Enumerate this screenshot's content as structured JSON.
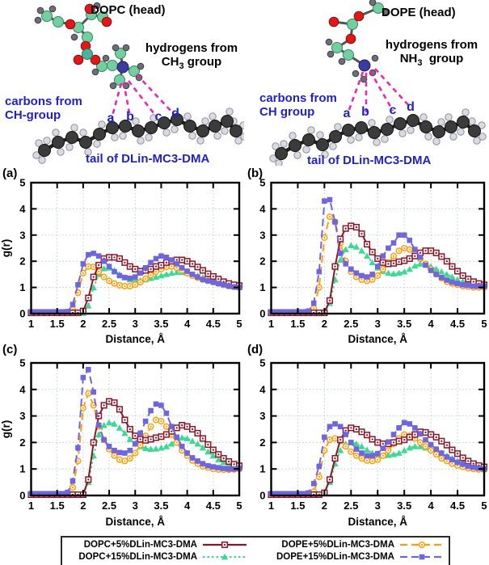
{
  "molecules": {
    "left": {
      "title": "DOPC (head)",
      "hydrogens_line1": "hydrogens from",
      "hydrogens_base": "CH",
      "hydrogens_sub": "3",
      "hydrogens_suffix": " group",
      "carbons_line1": "carbons from",
      "carbons_line2": "CH-group",
      "site_labels": [
        "a",
        "b",
        "c",
        "d"
      ],
      "tail_label": "tail of DLin-MC3-DMA"
    },
    "right": {
      "title": "DOPE (head)",
      "hydrogens_line1": "hydrogens from",
      "hydrogens_base": "NH",
      "hydrogens_sub": "3",
      "hydrogens_suffix": "  group",
      "carbons_line1": "carbons from",
      "carbons_line2": "CH group",
      "site_labels": [
        "a",
        "b",
        "c",
        "d"
      ],
      "tail_label": "tail of DLin-MC3-DMA"
    }
  },
  "style": {
    "grid_color": "#bccfc6",
    "axis_color": "#000000",
    "text_blue": "#2121cc",
    "magenta_dash": "#e62ab0"
  },
  "series_styles": {
    "DOPC+5%DLin-MC3-DMA": {
      "color": "#8b1527",
      "marker": "open-square-dot",
      "dash": "solid"
    },
    "DOPC+15%DLin-MC3-DMA": {
      "color": "#3fd795",
      "marker": "filled-triangle",
      "dash": "dotted"
    },
    "DOPE+5%DLin-MC3-DMA": {
      "color": "#ff9e0d",
      "marker": "open-circle-dot",
      "dash": "dashed"
    },
    "DOPE+15%DLin-MC3-DMA": {
      "color": "#6f66dd",
      "marker": "filled-square",
      "dash": "dashed"
    }
  },
  "legend": {
    "items": [
      {
        "label": "DOPC+5%DLin-MC3-DMA",
        "series": "DOPC+5%DLin-MC3-DMA"
      },
      {
        "label": "DOPE+5%DLin-MC3-DMA",
        "series": "DOPE+5%DLin-MC3-DMA"
      },
      {
        "label": "DOPC+15%DLin-MC3-DMA",
        "series": "DOPC+15%DLin-MC3-DMA"
      },
      {
        "label": "DOPE+15%DLin-MC3-DMA",
        "series": "DOPE+15%DLin-MC3-DMA"
      }
    ]
  },
  "chart_data": [
    {
      "id": "a",
      "type": "line",
      "panel_label": "(a)",
      "xlabel": "Distance, Å",
      "ylabel": "g(r)",
      "xlim": [
        1,
        5
      ],
      "ylim": [
        0,
        5
      ],
      "xticks": [
        1,
        1.5,
        2,
        2.5,
        3,
        3.5,
        4,
        4.5,
        5
      ],
      "yticks": [
        0,
        1,
        2,
        3,
        4,
        5
      ],
      "x_start": 1.0,
      "x_step": 0.1,
      "series": [
        {
          "name": "DOPC+15%DLin-MC3-DMA",
          "values": [
            0.02,
            0.02,
            0.02,
            0.02,
            0.02,
            0.02,
            0.02,
            0.02,
            0.02,
            0.02,
            0.02,
            0.3,
            1.0,
            1.5,
            1.72,
            1.75,
            1.65,
            1.5,
            1.38,
            1.3,
            1.27,
            1.27,
            1.3,
            1.35,
            1.4,
            1.45,
            1.5,
            1.55,
            1.58,
            1.58,
            1.55,
            1.5,
            1.45,
            1.38,
            1.3,
            1.25,
            1.18,
            1.12,
            1.08,
            1.03,
            1.0
          ]
        },
        {
          "name": "DOPE+5%DLin-MC3-DMA",
          "values": [
            0.04,
            0.04,
            0.04,
            0.04,
            0.04,
            0.04,
            0.04,
            0.04,
            0.15,
            0.8,
            1.55,
            1.8,
            1.78,
            1.6,
            1.4,
            1.25,
            1.15,
            1.08,
            1.05,
            1.05,
            1.1,
            1.2,
            1.33,
            1.47,
            1.6,
            1.7,
            1.78,
            1.8,
            1.75,
            1.65,
            1.55,
            1.45,
            1.37,
            1.3,
            1.25,
            1.2,
            1.15,
            1.1,
            1.05,
            1.02,
            1.0
          ]
        },
        {
          "name": "DOPC+5%DLin-MC3-DMA",
          "values": [
            0.03,
            0.03,
            0.03,
            0.03,
            0.03,
            0.03,
            0.03,
            0.03,
            0.03,
            0.03,
            0.1,
            0.6,
            1.4,
            1.85,
            2.1,
            2.15,
            2.15,
            2.1,
            1.95,
            1.8,
            1.7,
            1.62,
            1.65,
            1.7,
            1.8,
            1.85,
            1.95,
            2.0,
            2.05,
            2.05,
            2.0,
            1.9,
            1.78,
            1.65,
            1.52,
            1.42,
            1.32,
            1.22,
            1.15,
            1.1,
            1.07
          ]
        },
        {
          "name": "DOPE+15%DLin-MC3-DMA",
          "values": [
            0.07,
            0.07,
            0.07,
            0.07,
            0.07,
            0.07,
            0.07,
            0.08,
            0.35,
            1.1,
            1.9,
            2.25,
            2.3,
            2.2,
            2.0,
            1.8,
            1.6,
            1.45,
            1.38,
            1.35,
            1.4,
            1.55,
            1.75,
            1.95,
            2.1,
            2.2,
            2.15,
            2.05,
            1.9,
            1.75,
            1.62,
            1.5,
            1.4,
            1.3,
            1.25,
            1.2,
            1.15,
            1.1,
            1.05,
            1.02,
            1.0
          ]
        }
      ]
    },
    {
      "id": "b",
      "type": "line",
      "panel_label": "(b)",
      "xlabel": "Distance, Å",
      "ylabel": "",
      "xlim": [
        1,
        5
      ],
      "ylim": [
        0,
        5
      ],
      "xticks": [
        1,
        1.5,
        2,
        2.5,
        3,
        3.5,
        4,
        4.5,
        5
      ],
      "yticks": [
        0,
        1,
        2,
        3,
        4,
        5
      ],
      "x_start": 1.0,
      "x_step": 0.1,
      "series": [
        {
          "name": "DOPC+15%DLin-MC3-DMA",
          "values": [
            0.02,
            0.02,
            0.02,
            0.02,
            0.02,
            0.02,
            0.02,
            0.02,
            0.02,
            0.02,
            0.02,
            0.4,
            1.3,
            2.05,
            2.45,
            2.6,
            2.55,
            2.4,
            2.2,
            1.95,
            1.75,
            1.62,
            1.55,
            1.52,
            1.55,
            1.6,
            1.7,
            1.82,
            1.9,
            1.88,
            1.8,
            1.7,
            1.6,
            1.5,
            1.4,
            1.3,
            1.22,
            1.15,
            1.1,
            1.06,
            1.03
          ]
        },
        {
          "name": "DOPE+5%DLin-MC3-DMA",
          "values": [
            0.04,
            0.04,
            0.04,
            0.04,
            0.04,
            0.04,
            0.04,
            0.04,
            0.2,
            1.0,
            2.9,
            3.7,
            3.5,
            2.7,
            2.0,
            1.6,
            1.4,
            1.3,
            1.25,
            1.3,
            1.45,
            1.7,
            1.95,
            2.2,
            2.4,
            2.5,
            2.45,
            2.3,
            2.1,
            1.9,
            1.7,
            1.5,
            1.35,
            1.22,
            1.15,
            1.1,
            1.05,
            1.03,
            1.0,
            1.0,
            1.0
          ]
        },
        {
          "name": "DOPC+5%DLin-MC3-DMA",
          "values": [
            0.03,
            0.03,
            0.03,
            0.03,
            0.03,
            0.03,
            0.03,
            0.03,
            0.03,
            0.03,
            0.03,
            0.5,
            1.8,
            2.85,
            3.25,
            3.35,
            3.3,
            3.05,
            2.65,
            2.35,
            2.1,
            1.95,
            1.9,
            1.92,
            1.98,
            2.02,
            2.1,
            2.2,
            2.32,
            2.4,
            2.4,
            2.32,
            2.18,
            2.0,
            1.8,
            1.62,
            1.45,
            1.32,
            1.22,
            1.15,
            1.1
          ]
        },
        {
          "name": "DOPE+15%DLin-MC3-DMA",
          "values": [
            0.07,
            0.07,
            0.07,
            0.07,
            0.07,
            0.07,
            0.07,
            0.1,
            0.4,
            1.6,
            4.3,
            4.35,
            3.5,
            2.3,
            1.9,
            1.7,
            1.55,
            1.45,
            1.4,
            1.5,
            1.8,
            2.2,
            2.5,
            2.7,
            3.0,
            3.0,
            2.8,
            2.45,
            2.15,
            1.85,
            1.65,
            1.5,
            1.38,
            1.28,
            1.2,
            1.15,
            1.1,
            1.08,
            1.05,
            1.05,
            1.05
          ]
        }
      ]
    },
    {
      "id": "c",
      "type": "line",
      "panel_label": "(c)",
      "xlabel": "Distance, Å",
      "ylabel": "g(r)",
      "xlim": [
        1,
        5
      ],
      "ylim": [
        0,
        5
      ],
      "xticks": [
        1,
        1.5,
        2,
        2.5,
        3,
        3.5,
        4,
        4.5,
        5
      ],
      "yticks": [
        0,
        1,
        2,
        3,
        4,
        5
      ],
      "x_start": 1.0,
      "x_step": 0.1,
      "series": [
        {
          "name": "DOPC+15%DLin-MC3-DMA",
          "values": [
            0.02,
            0.02,
            0.02,
            0.02,
            0.02,
            0.02,
            0.02,
            0.02,
            0.02,
            0.02,
            0.02,
            0.5,
            1.5,
            2.3,
            2.65,
            2.75,
            2.7,
            2.55,
            2.35,
            2.12,
            1.95,
            1.85,
            1.78,
            1.75,
            1.76,
            1.8,
            1.85,
            1.95,
            2.1,
            2.18,
            2.15,
            2.05,
            1.95,
            1.8,
            1.65,
            1.5,
            1.35,
            1.25,
            1.15,
            1.08,
            1.05
          ]
        },
        {
          "name": "DOPE+5%DLin-MC3-DMA",
          "values": [
            0.04,
            0.04,
            0.04,
            0.04,
            0.04,
            0.04,
            0.04,
            0.04,
            0.3,
            1.3,
            3.3,
            3.85,
            3.4,
            2.6,
            2.1,
            1.75,
            1.5,
            1.35,
            1.3,
            1.4,
            1.6,
            1.9,
            2.25,
            2.6,
            2.85,
            2.8,
            2.6,
            2.3,
            2.0,
            1.7,
            1.5,
            1.32,
            1.2,
            1.1,
            1.05,
            1.0,
            0.98,
            0.97,
            0.97,
            0.98,
            1.0
          ]
        },
        {
          "name": "DOPC+5%DLin-MC3-DMA",
          "values": [
            0.03,
            0.03,
            0.03,
            0.03,
            0.03,
            0.03,
            0.03,
            0.03,
            0.03,
            0.03,
            0.03,
            0.6,
            2.0,
            3.0,
            3.4,
            3.55,
            3.5,
            3.25,
            2.85,
            2.5,
            2.25,
            2.12,
            2.08,
            2.12,
            2.18,
            2.22,
            2.3,
            2.42,
            2.55,
            2.65,
            2.6,
            2.5,
            2.35,
            2.15,
            1.92,
            1.72,
            1.55,
            1.4,
            1.28,
            1.18,
            1.12
          ]
        },
        {
          "name": "DOPE+15%DLin-MC3-DMA",
          "values": [
            0.07,
            0.07,
            0.07,
            0.07,
            0.07,
            0.07,
            0.07,
            0.12,
            0.55,
            1.8,
            4.45,
            4.75,
            3.9,
            2.65,
            2.1,
            1.85,
            1.7,
            1.62,
            1.6,
            1.7,
            1.95,
            2.35,
            2.8,
            3.2,
            3.45,
            3.4,
            3.1,
            2.6,
            2.2,
            1.85,
            1.6,
            1.42,
            1.3,
            1.2,
            1.12,
            1.08,
            1.05,
            1.02,
            1.0,
            1.0,
            1.02
          ]
        }
      ]
    },
    {
      "id": "d",
      "type": "line",
      "panel_label": "(d)",
      "xlabel": "Distance, Å",
      "ylabel": "",
      "xlim": [
        1,
        5
      ],
      "ylim": [
        0,
        5
      ],
      "xticks": [
        1,
        1.5,
        2,
        2.5,
        3,
        3.5,
        4,
        4.5,
        5
      ],
      "yticks": [
        0,
        1,
        2,
        3,
        4,
        5
      ],
      "x_start": 1.0,
      "x_step": 0.1,
      "series": [
        {
          "name": "DOPC+15%DLin-MC3-DMA",
          "values": [
            0.02,
            0.02,
            0.02,
            0.02,
            0.02,
            0.02,
            0.02,
            0.02,
            0.02,
            0.02,
            0.1,
            0.5,
            1.2,
            1.7,
            1.95,
            2.0,
            1.95,
            1.85,
            1.72,
            1.6,
            1.55,
            1.5,
            1.52,
            1.55,
            1.6,
            1.7,
            1.8,
            1.85,
            1.85,
            1.8,
            1.75,
            1.68,
            1.6,
            1.5,
            1.4,
            1.3,
            1.25,
            1.18,
            1.1,
            1.05,
            1.0
          ]
        },
        {
          "name": "DOPE+5%DLin-MC3-DMA",
          "values": [
            0.04,
            0.04,
            0.04,
            0.04,
            0.04,
            0.04,
            0.04,
            0.04,
            0.15,
            0.7,
            1.7,
            2.1,
            2.15,
            2.05,
            1.85,
            1.65,
            1.5,
            1.4,
            1.32,
            1.3,
            1.35,
            1.5,
            1.7,
            1.95,
            2.15,
            2.3,
            2.25,
            2.15,
            2.0,
            1.85,
            1.7,
            1.55,
            1.4,
            1.3,
            1.2,
            1.13,
            1.08,
            1.03,
            1.0,
            0.98,
            0.97
          ]
        },
        {
          "name": "DOPC+5%DLin-MC3-DMA",
          "values": [
            0.03,
            0.03,
            0.03,
            0.03,
            0.03,
            0.03,
            0.03,
            0.03,
            0.03,
            0.03,
            0.1,
            0.6,
            1.4,
            2.1,
            2.45,
            2.55,
            2.5,
            2.4,
            2.28,
            2.12,
            2.0,
            1.95,
            1.95,
            2.0,
            2.05,
            2.1,
            2.2,
            2.3,
            2.4,
            2.38,
            2.3,
            2.2,
            2.05,
            1.9,
            1.72,
            1.58,
            1.42,
            1.3,
            1.2,
            1.13,
            1.08
          ]
        },
        {
          "name": "DOPE+15%DLin-MC3-DMA",
          "values": [
            0.07,
            0.07,
            0.07,
            0.07,
            0.07,
            0.07,
            0.07,
            0.1,
            0.45,
            1.1,
            2.2,
            2.6,
            2.7,
            2.6,
            2.3,
            2.0,
            1.75,
            1.6,
            1.5,
            1.5,
            1.58,
            1.78,
            2.02,
            2.3,
            2.55,
            2.75,
            2.7,
            2.55,
            2.32,
            2.1,
            1.92,
            1.75,
            1.6,
            1.45,
            1.35,
            1.25,
            1.18,
            1.1,
            1.06,
            1.03,
            1.0
          ]
        }
      ]
    }
  ]
}
